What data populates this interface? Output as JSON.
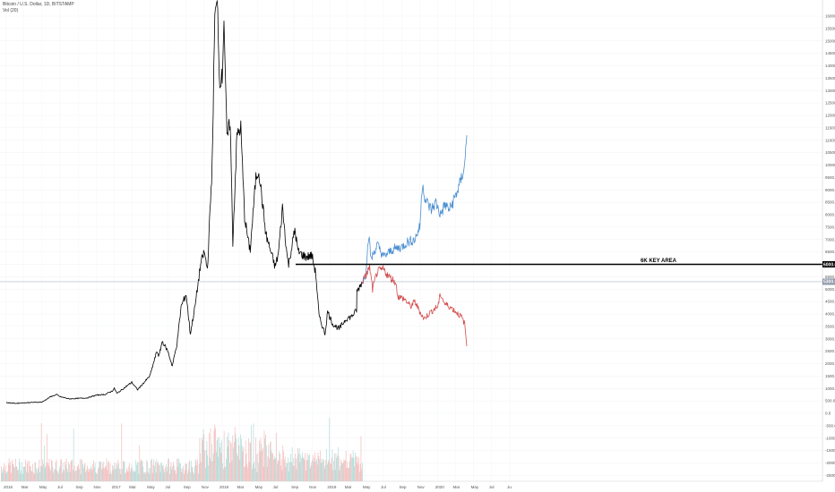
{
  "legend": {
    "symbol_line": "Bitcoin / U.S. Dollar, 1D, BITSTAMP",
    "volume_line": "Vol (20)"
  },
  "chart_data": {
    "type": "line",
    "y_ticks": [
      "16000.0",
      "15500.0",
      "15000.0",
      "14500.0",
      "14000.0",
      "13500.0",
      "13000.0",
      "12500.0",
      "12000.0",
      "11500.0",
      "11000.0",
      "10500.0",
      "10000.0",
      "9500.0",
      "9000.0",
      "8500.0",
      "8000.0",
      "7500.0",
      "7000.0",
      "6500.0",
      "6000.0",
      "5500.0",
      "5000.0",
      "4500.0",
      "4000.0",
      "3500.0",
      "3000.0",
      "2500.0",
      "2000.0",
      "1500.0",
      "1000.0",
      "500.0",
      "0.0",
      "-500.0",
      "-1000.0",
      "-1500.0",
      "-2000.0",
      "-2500.0"
    ],
    "x_ticks": [
      "2016",
      "Mar",
      "May",
      "Jul",
      "Sep",
      "Nov",
      "2017",
      "Mar",
      "May",
      "Jul",
      "Sep",
      "Nov",
      "2018",
      "Mar",
      "May",
      "Jul",
      "Sep",
      "Nov",
      "2019",
      "Mar",
      "May",
      "Jul",
      "Sep",
      "Nov",
      "2020",
      "Mar",
      "May",
      "Jul",
      "Ju"
    ],
    "key_level": {
      "label": "6K KEY AREA",
      "value": 6000,
      "color": "#000000",
      "price_tag": "6000.0"
    },
    "current_price": {
      "value": 5300,
      "price_tag": "5300.0"
    },
    "series": [
      {
        "name": "",
        "color": "#000000",
        "points": [
          [
            "2016-01-01",
            430
          ],
          [
            "2016-02-01",
            400
          ],
          [
            "2016-03-01",
            420
          ],
          [
            "2016-04-01",
            440
          ],
          [
            "2016-05-01",
            450
          ],
          [
            "2016-06-01",
            680
          ],
          [
            "2016-06-20",
            750
          ],
          [
            "2016-07-01",
            670
          ],
          [
            "2016-08-01",
            580
          ],
          [
            "2016-09-01",
            600
          ],
          [
            "2016-10-01",
            620
          ],
          [
            "2016-11-01",
            730
          ],
          [
            "2016-12-01",
            760
          ],
          [
            "2016-12-25",
            900
          ],
          [
            "2017-01-01",
            1000
          ],
          [
            "2017-01-10",
            800
          ],
          [
            "2017-02-01",
            1000
          ],
          [
            "2017-03-01",
            1250
          ],
          [
            "2017-03-20",
            950
          ],
          [
            "2017-04-01",
            1100
          ],
          [
            "2017-05-01",
            1500
          ],
          [
            "2017-05-25",
            2500
          ],
          [
            "2017-06-01",
            2300
          ],
          [
            "2017-06-12",
            2900
          ],
          [
            "2017-07-01",
            2500
          ],
          [
            "2017-07-16",
            1900
          ],
          [
            "2017-08-01",
            2800
          ],
          [
            "2017-08-15",
            4300
          ],
          [
            "2017-09-01",
            4800
          ],
          [
            "2017-09-15",
            3200
          ],
          [
            "2017-10-01",
            4300
          ],
          [
            "2017-10-20",
            6000
          ],
          [
            "2017-11-01",
            6500
          ],
          [
            "2017-11-12",
            5800
          ],
          [
            "2017-11-28",
            10000
          ],
          [
            "2017-12-07",
            16000
          ],
          [
            "2017-12-17",
            16500
          ],
          [
            "2017-12-22",
            13500
          ],
          [
            "2018-01-01",
            13500
          ],
          [
            "2018-01-07",
            16000
          ],
          [
            "2018-01-17",
            11000
          ],
          [
            "2018-01-28",
            11800
          ],
          [
            "2018-02-06",
            6900
          ],
          [
            "2018-02-20",
            11200
          ],
          [
            "2018-03-05",
            11500
          ],
          [
            "2018-03-18",
            7900
          ],
          [
            "2018-04-01",
            6800
          ],
          [
            "2018-04-06",
            6600
          ],
          [
            "2018-04-25",
            9500
          ],
          [
            "2018-05-05",
            9800
          ],
          [
            "2018-05-29",
            7200
          ],
          [
            "2018-06-10",
            6700
          ],
          [
            "2018-06-29",
            5900
          ],
          [
            "2018-07-10",
            6400
          ],
          [
            "2018-07-24",
            8300
          ],
          [
            "2018-08-10",
            6200
          ],
          [
            "2018-08-14",
            6000
          ],
          [
            "2018-09-04",
            7400
          ],
          [
            "2018-09-15",
            6500
          ],
          [
            "2018-10-10",
            6300
          ],
          [
            "2018-11-01",
            6350
          ],
          [
            "2018-11-14",
            5600
          ],
          [
            "2018-11-25",
            3900
          ],
          [
            "2018-12-15",
            3200
          ],
          [
            "2018-12-24",
            4100
          ],
          [
            "2019-01-10",
            3600
          ],
          [
            "2019-02-01",
            3400
          ],
          [
            "2019-02-24",
            3800
          ],
          [
            "2019-03-15",
            3900
          ],
          [
            "2019-04-01",
            4150
          ],
          [
            "2019-04-02",
            4900
          ],
          [
            "2019-04-20",
            5300
          ]
        ]
      },
      {
        "name": "",
        "color": "#4a8ed1",
        "points": [
          [
            "2019-04-20",
            5300
          ],
          [
            "2019-05-01",
            5600
          ],
          [
            "2019-05-12",
            7200
          ],
          [
            "2019-05-20",
            6200
          ],
          [
            "2019-06-10",
            6800
          ],
          [
            "2019-07-01",
            6300
          ],
          [
            "2019-08-01",
            6600
          ],
          [
            "2019-09-01",
            6700
          ],
          [
            "2019-09-20",
            6900
          ],
          [
            "2019-10-15",
            7000
          ],
          [
            "2019-11-01",
            7500
          ],
          [
            "2019-11-10",
            9300
          ],
          [
            "2019-11-20",
            8600
          ],
          [
            "2019-12-10",
            8200
          ],
          [
            "2019-12-25",
            8500
          ],
          [
            "2020-01-10",
            8000
          ],
          [
            "2020-01-25",
            8400
          ],
          [
            "2020-02-10",
            8200
          ],
          [
            "2020-02-28",
            8700
          ],
          [
            "2020-03-15",
            9200
          ],
          [
            "2020-04-01",
            10000
          ],
          [
            "2020-04-08",
            11200
          ]
        ]
      },
      {
        "name": "",
        "color": "#d44a4a",
        "points": [
          [
            "2019-04-20",
            5300
          ],
          [
            "2019-05-01",
            5500
          ],
          [
            "2019-05-15",
            5900
          ],
          [
            "2019-05-25",
            5000
          ],
          [
            "2019-06-10",
            5700
          ],
          [
            "2019-07-01",
            5800
          ],
          [
            "2019-07-20",
            5500
          ],
          [
            "2019-08-10",
            5300
          ],
          [
            "2019-08-20",
            4700
          ],
          [
            "2019-09-10",
            4600
          ],
          [
            "2019-10-01",
            4300
          ],
          [
            "2019-10-15",
            4500
          ],
          [
            "2019-11-01",
            4100
          ],
          [
            "2019-11-15",
            3800
          ],
          [
            "2019-12-01",
            4000
          ],
          [
            "2019-12-20",
            4200
          ],
          [
            "2020-01-01",
            4300
          ],
          [
            "2020-01-10",
            4800
          ],
          [
            "2020-01-25",
            4400
          ],
          [
            "2020-02-10",
            4300
          ],
          [
            "2020-03-01",
            4100
          ],
          [
            "2020-03-20",
            3900
          ],
          [
            "2020-04-01",
            3600
          ],
          [
            "2020-04-08",
            2700
          ]
        ]
      }
    ]
  }
}
